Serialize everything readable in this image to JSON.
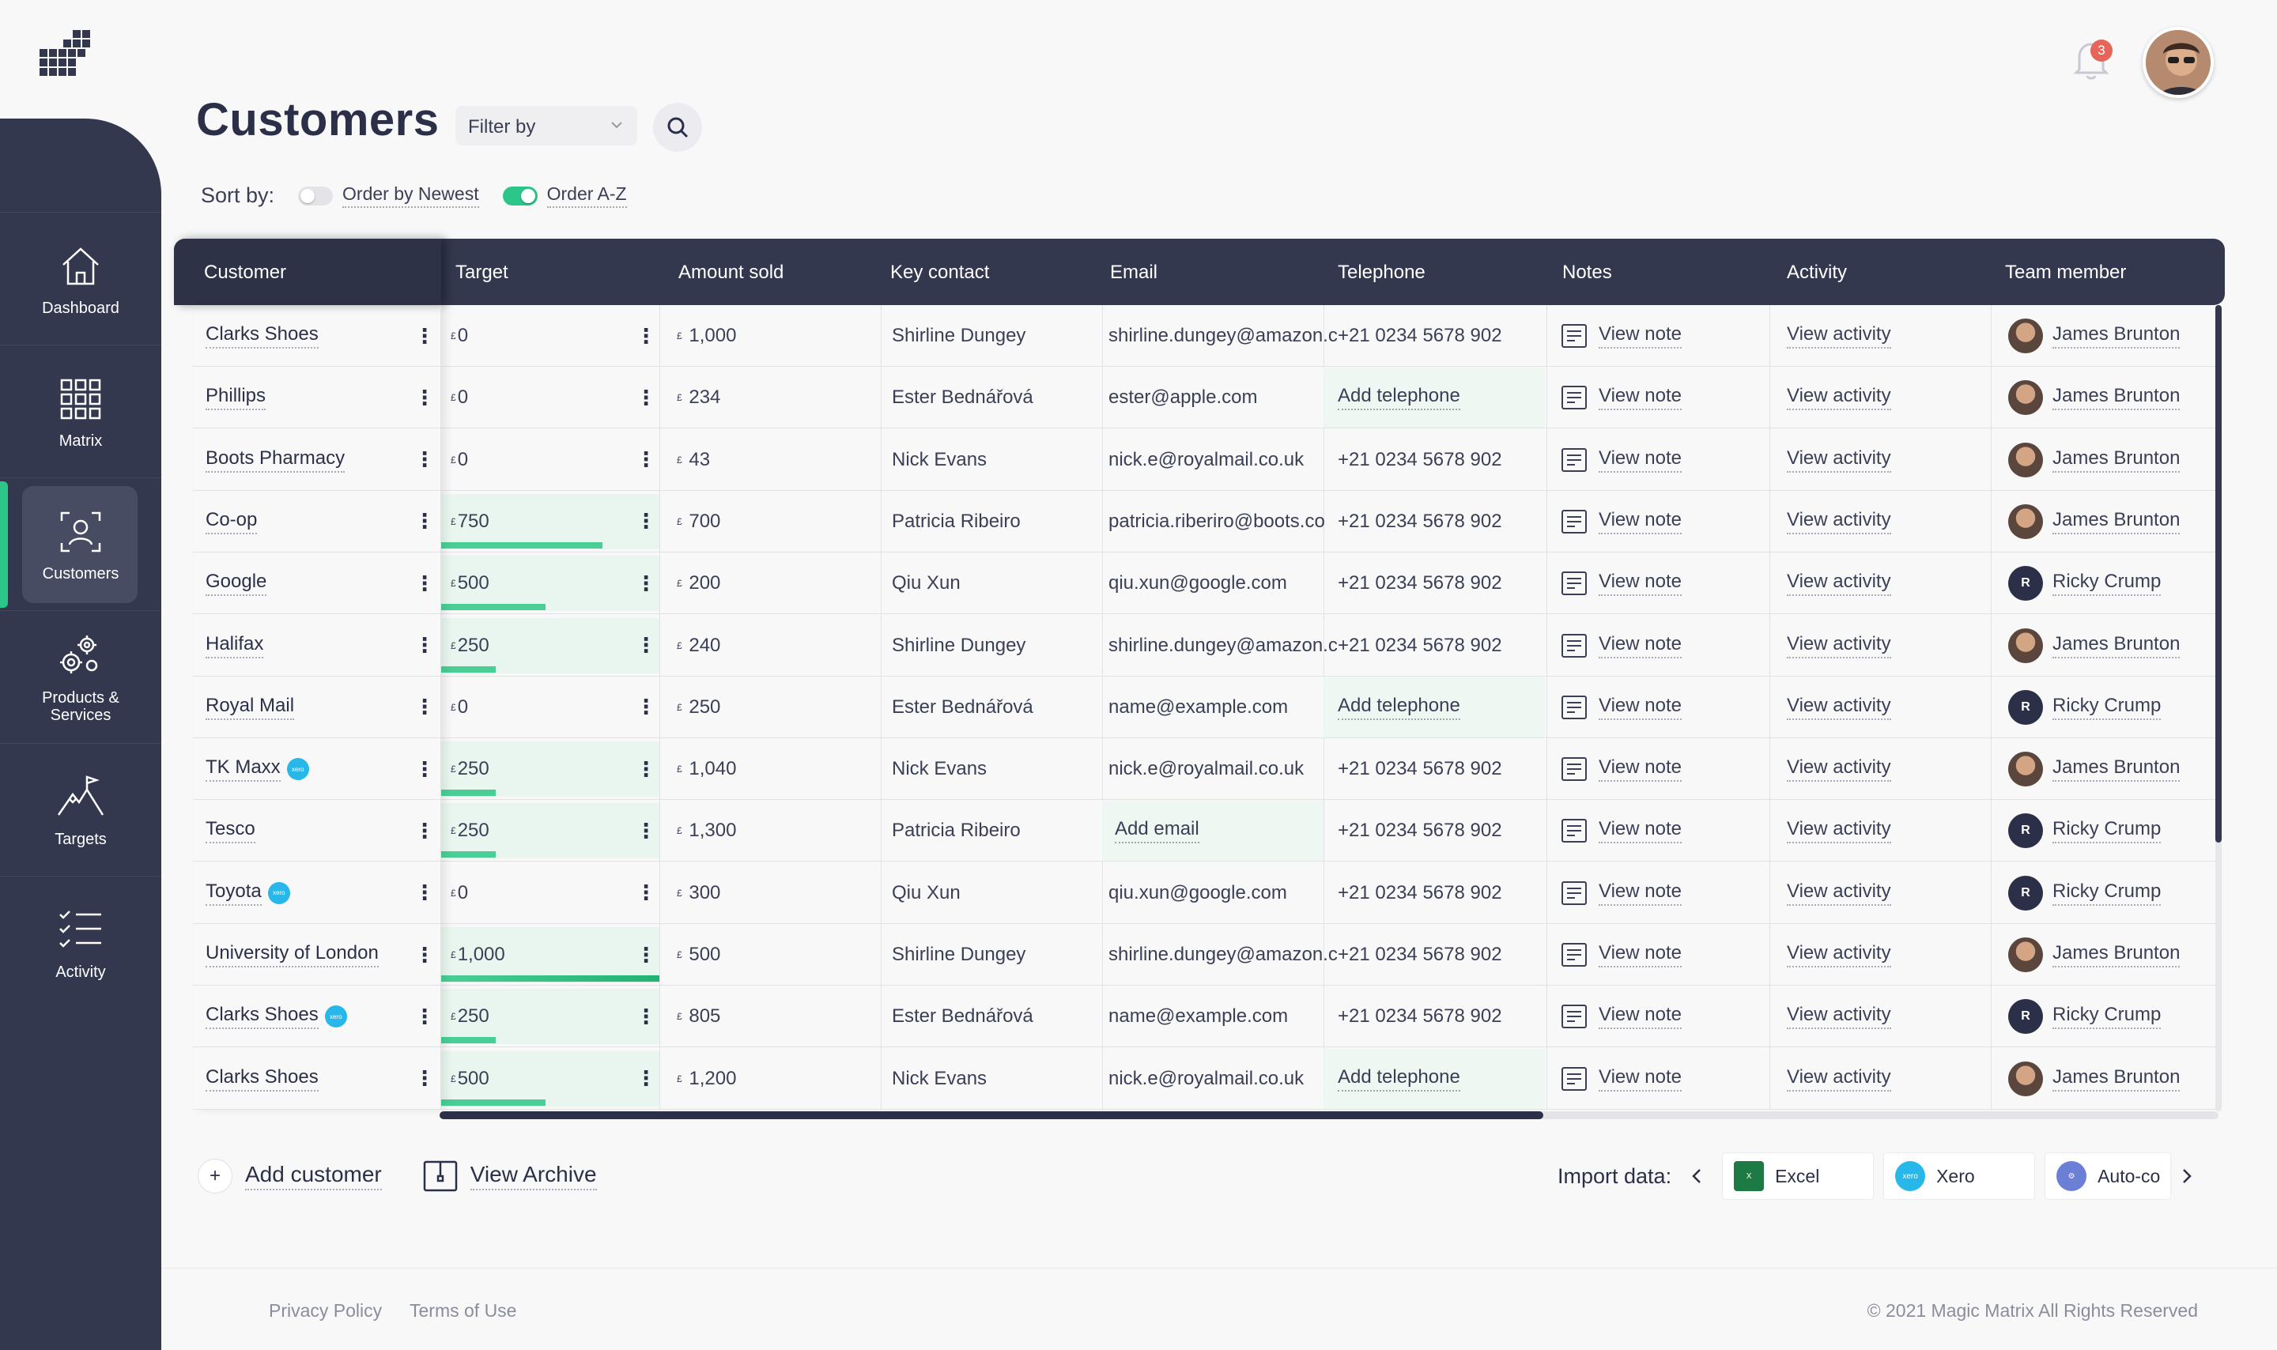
{
  "nav": [
    {
      "label": "Dashboard",
      "icon": "home-icon"
    },
    {
      "label": "Matrix",
      "icon": "grid-icon"
    },
    {
      "label": "Customers",
      "icon": "customers-icon",
      "active": true
    },
    {
      "label_line1": "Products &",
      "label_line2": "Services",
      "icon": "gear-cluster-icon"
    },
    {
      "label": "Targets",
      "icon": "mountain-flag-icon"
    },
    {
      "label": "Activity",
      "icon": "checklist-icon"
    }
  ],
  "header": {
    "title": "Customers",
    "filter_placeholder": "Filter by",
    "sort_label": "Sort by:",
    "sort_options": [
      "Order by Newest",
      "Order A-Z"
    ],
    "notification_count": "3"
  },
  "columns": [
    "Customer",
    "Target",
    "Amount sold",
    "Key contact",
    "Email",
    "Telephone",
    "Notes",
    "Activity",
    "Team member"
  ],
  "rows": [
    {
      "customer": "Clarks Shoes",
      "xero": false,
      "target": "0",
      "target_progress": 0,
      "amount": "1,000",
      "contact": "Shirline Dungey",
      "email": "shirline.dungey@amazon.c",
      "phone": "+21 0234 5678 902",
      "note": "View note",
      "activity": "View activity",
      "member": "James Brunton",
      "member_type": "photo"
    },
    {
      "customer": "Phillips",
      "xero": false,
      "target": "0",
      "target_progress": 0,
      "amount": "234",
      "contact": "Ester Bednářová",
      "email": "ester@apple.com",
      "phone": "Add telephone",
      "phone_missing": true,
      "note": "View note",
      "activity": "View activity",
      "member": "James Brunton",
      "member_type": "photo"
    },
    {
      "customer": "Boots Pharmacy",
      "xero": false,
      "target": "0",
      "target_progress": 0,
      "amount": "43",
      "contact": "Nick Evans",
      "email": "nick.e@royalmail.co.uk",
      "phone": "+21 0234 5678 902",
      "note": "View note",
      "activity": "View activity",
      "member": "James Brunton",
      "member_type": "photo"
    },
    {
      "customer": "Co-op",
      "xero": false,
      "target": "750",
      "target_progress": 0.74,
      "amount": "700",
      "contact": "Patricia Ribeiro",
      "email": "patricia.riberiro@boots.co",
      "phone": "+21 0234 5678 902",
      "note": "View note",
      "activity": "View activity",
      "member": "James Brunton",
      "member_type": "photo"
    },
    {
      "customer": "Google",
      "xero": false,
      "target": "500",
      "target_progress": 0.48,
      "amount": "200",
      "contact": "Qiu Xun",
      "email": "qiu.xun@google.com",
      "phone": "+21 0234 5678 902",
      "note": "View note",
      "activity": "View activity",
      "member": "Ricky Crump",
      "member_type": "initial"
    },
    {
      "customer": "Halifax",
      "xero": false,
      "target": "250",
      "target_progress": 0.25,
      "amount": "240",
      "contact": "Shirline Dungey",
      "email": "shirline.dungey@amazon.c",
      "phone": "+21 0234 5678 902",
      "note": "View note",
      "activity": "View activity",
      "member": "James Brunton",
      "member_type": "photo"
    },
    {
      "customer": "Royal Mail",
      "xero": false,
      "target": "0",
      "target_progress": 0,
      "amount": "250",
      "contact": "Ester Bednářová",
      "email": "name@example.com",
      "phone": "Add telephone",
      "phone_missing": true,
      "note": "View note",
      "activity": "View activity",
      "member": "Ricky Crump",
      "member_type": "initial"
    },
    {
      "customer": "TK Maxx",
      "xero": true,
      "target": "250",
      "target_progress": 0.25,
      "amount": "1,040",
      "contact": "Nick Evans",
      "email": "nick.e@royalmail.co.uk",
      "phone": "+21 0234 5678 902",
      "note": "View note",
      "activity": "View activity",
      "member": "James Brunton",
      "member_type": "photo"
    },
    {
      "customer": "Tesco",
      "xero": false,
      "target": "250",
      "target_progress": 0.25,
      "amount": "1,300",
      "contact": "Patricia Ribeiro",
      "email": "Add email",
      "email_missing": true,
      "phone": "+21 0234 5678 902",
      "note": "View note",
      "activity": "View activity",
      "member": "Ricky Crump",
      "member_type": "initial"
    },
    {
      "customer": "Toyota",
      "xero": true,
      "target": "0",
      "target_progress": 0,
      "amount": "300",
      "contact": "Qiu Xun",
      "email": "qiu.xun@google.com",
      "phone": "+21 0234 5678 902",
      "note": "View note",
      "activity": "View activity",
      "member": "Ricky Crump",
      "member_type": "initial"
    },
    {
      "customer": "University of London",
      "xero": false,
      "target": "1,000",
      "target_progress": 1,
      "amount": "500",
      "contact": "Shirline Dungey",
      "email": "shirline.dungey@amazon.c",
      "phone": "+21 0234 5678 902",
      "note": "View note",
      "activity": "View activity",
      "member": "James Brunton",
      "member_type": "photo"
    },
    {
      "customer": "Clarks Shoes",
      "xero": true,
      "target": "250",
      "target_progress": 0.25,
      "amount": "805",
      "contact": "Ester Bednářová",
      "email": "name@example.com",
      "phone": "+21 0234 5678 902",
      "note": "View note",
      "activity": "View activity",
      "member": "Ricky Crump",
      "member_type": "initial"
    },
    {
      "customer": "Clarks Shoes",
      "xero": false,
      "target": "500",
      "target_progress": 0.48,
      "amount": "1,200",
      "contact": "Nick Evans",
      "email": "nick.e@royalmail.co.uk",
      "phone": "Add telephone",
      "phone_missing": true,
      "note": "View note",
      "activity": "View activity",
      "member": "James Brunton",
      "member_type": "photo"
    }
  ],
  "currency_symbol": "£",
  "member_initial": "R",
  "xero_badge_text": "xero",
  "actions": {
    "add_customer": "Add customer",
    "view_archive": "View Archive"
  },
  "import": {
    "label": "Import data:",
    "options": [
      "Excel",
      "Xero",
      "Auto-co"
    ]
  },
  "footer": {
    "privacy": "Privacy Policy",
    "terms": "Terms of Use",
    "copyright": "© 2021 Magic Matrix All Rights Reserved"
  },
  "colors": {
    "sidebar": "#33384f",
    "accent": "#2cc58a",
    "badge": "#e6655a"
  }
}
